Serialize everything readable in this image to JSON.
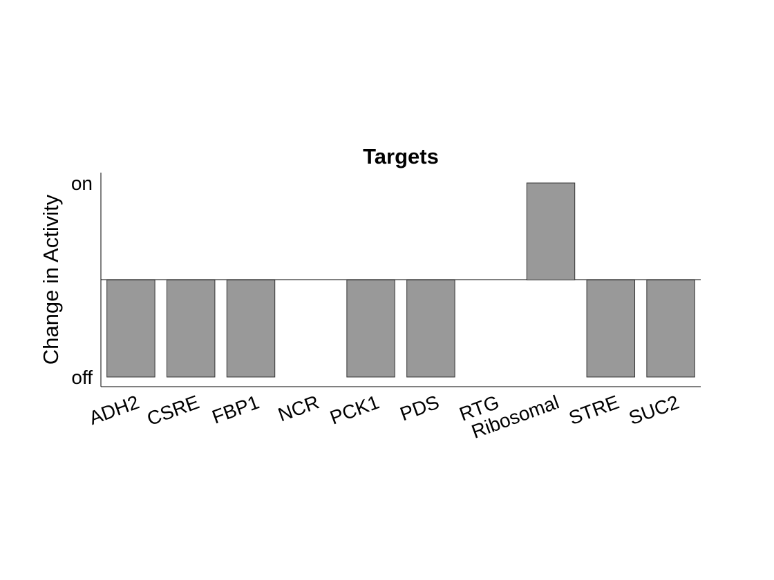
{
  "chart_data": {
    "type": "bar",
    "title": "Targets",
    "xlabel": "",
    "ylabel": "Change in Activity",
    "categories": [
      "ADH2",
      "CSRE",
      "FBP1",
      "NCR",
      "PCK1",
      "PDS",
      "RTG",
      "Ribosomal",
      "STRE",
      "SUC2"
    ],
    "values": [
      -1,
      -1,
      -1,
      0,
      -1,
      -1,
      0,
      1,
      -1,
      -1
    ],
    "ylim": [
      -1,
      1
    ],
    "yticks": [
      -1,
      1
    ],
    "ytick_labels": [
      "off",
      "on"
    ],
    "baseline": 0,
    "grid": false,
    "legend": "none",
    "bar_color": "#999999",
    "bar_edge_color": "#333333"
  }
}
